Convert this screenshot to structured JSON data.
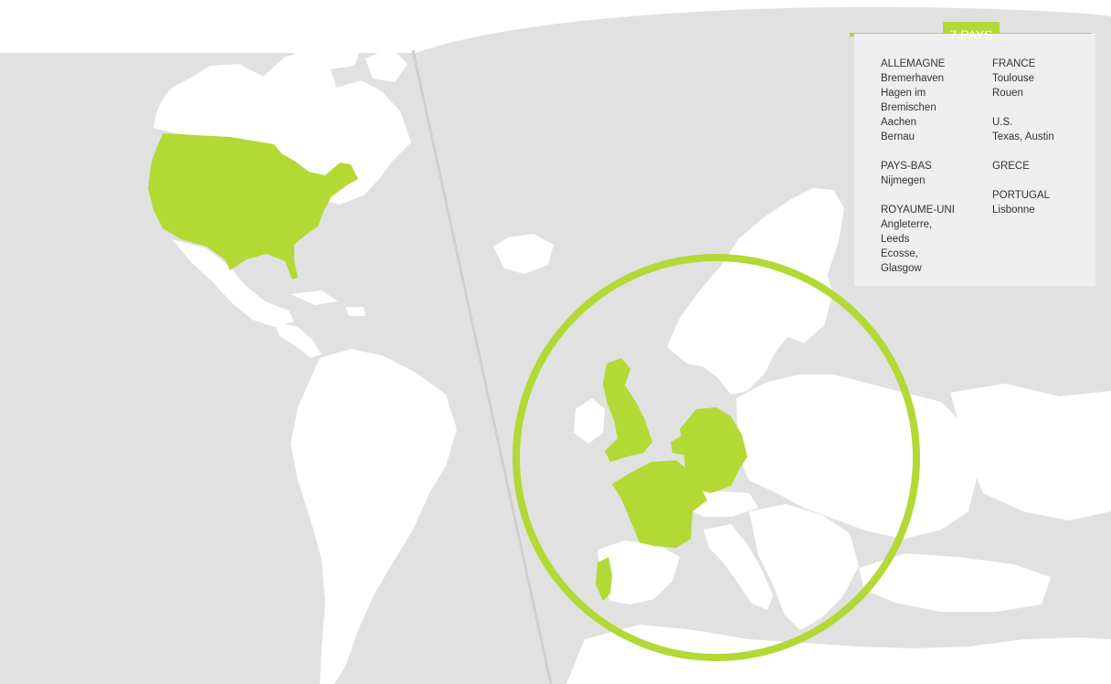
{
  "colors": {
    "accent": "#b2d934",
    "land_gray": "#e1e1e1",
    "land_white": "#ffffff",
    "divider": "#cfcfcf",
    "legend_bg": "#efefef"
  },
  "legend": {
    "title": "7 PAYS",
    "left_column": [
      {
        "country": "ALLEMAGNE",
        "cities": [
          "Bremerhaven",
          "Hagen im",
          "Bremischen",
          "Aachen",
          "Bernau"
        ]
      },
      {
        "country": "PAYS-BAS",
        "cities": [
          "Nijmegen"
        ]
      },
      {
        "country": "ROYAUME-UNI",
        "cities": [
          "Angleterre,",
          "Leeds",
          "Ecosse,",
          "Glasgow"
        ]
      }
    ],
    "right_column": [
      {
        "country": "FRANCE",
        "cities": [
          "Toulouse",
          "Rouen"
        ]
      },
      {
        "country": "U.S.",
        "cities": [
          "Texas, Austin"
        ]
      },
      {
        "country": "GRECE",
        "cities": []
      },
      {
        "country": "PORTUGAL",
        "cities": [
          "Lisbonne"
        ]
      }
    ]
  },
  "map": {
    "highlighted_countries": [
      "united-states",
      "united-kingdom",
      "france",
      "germany",
      "netherlands",
      "portugal"
    ],
    "focus_circle_region": "europe"
  }
}
